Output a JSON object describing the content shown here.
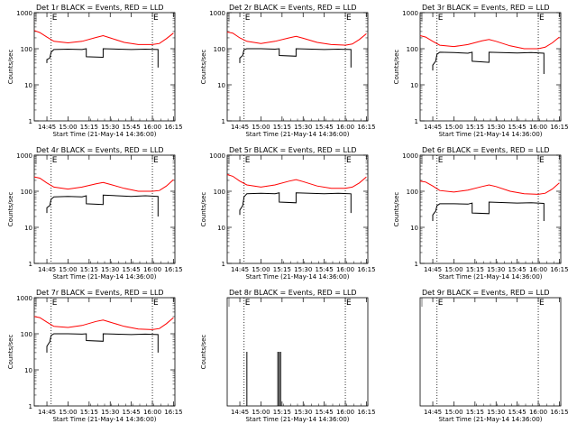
{
  "colors": {
    "events": "#000000",
    "lld": "#ff0000",
    "axes": "#000000",
    "background": "#ffffff"
  },
  "chart_data": [
    {
      "type": "line",
      "title": "Det 1r BLACK = Events, RED = LLD",
      "xlabel": "Start Time (21-May-14 14:36:00)",
      "ylabel": "Counts/sec",
      "x_ticks": [
        "14:45",
        "15:00",
        "15:15",
        "15:30",
        "15:45",
        "16:00",
        "16:15"
      ],
      "y_ticks": [
        "1",
        "10",
        "100",
        "1000"
      ],
      "ylim": [
        1,
        1000
      ],
      "yscale": "log",
      "xlim": [
        "14:36",
        "16:16"
      ],
      "markers": [
        "14:48",
        "16:00"
      ],
      "marker_label": "E",
      "series": [
        {
          "name": "Events",
          "color": "#000000",
          "x": [
            "14:45",
            "14:45",
            "14:47",
            "14:48",
            "14:50",
            "15:00",
            "15:10",
            "15:13",
            "15:13",
            "15:25",
            "15:25",
            "15:45",
            "15:55",
            "16:04",
            "16:04"
          ],
          "y": [
            40,
            50,
            55,
            80,
            95,
            97,
            95,
            100,
            60,
            58,
            100,
            95,
            97,
            95,
            30
          ]
        },
        {
          "name": "LLD",
          "color": "#ff0000",
          "x": [
            "14:36",
            "14:40",
            "14:45",
            "14:50",
            "15:00",
            "15:10",
            "15:20",
            "15:25",
            "15:30",
            "15:40",
            "15:50",
            "16:00",
            "16:05",
            "16:10",
            "16:15"
          ],
          "y": [
            320,
            280,
            210,
            160,
            145,
            160,
            205,
            230,
            200,
            150,
            130,
            130,
            140,
            190,
            270
          ]
        }
      ]
    },
    {
      "type": "line",
      "title": "Det 2r BLACK = Events, RED = LLD",
      "xlabel": "Start Time (21-May-14 14:36:00)",
      "ylabel": "Counts/sec",
      "x_ticks": [
        "14:45",
        "15:00",
        "15:15",
        "15:30",
        "15:45",
        "16:00",
        "16:15"
      ],
      "y_ticks": [
        "1",
        "10",
        "100",
        "1000"
      ],
      "ylim": [
        1,
        1000
      ],
      "yscale": "log",
      "xlim": [
        "14:36",
        "16:16"
      ],
      "markers": [
        "14:48",
        "16:00"
      ],
      "marker_label": "E",
      "series": [
        {
          "name": "Events",
          "color": "#000000",
          "x": [
            "14:45",
            "14:45",
            "14:47",
            "14:48",
            "14:50",
            "15:00",
            "15:10",
            "15:13",
            "15:13",
            "15:25",
            "15:25",
            "15:45",
            "15:55",
            "16:04",
            "16:04"
          ],
          "y": [
            40,
            55,
            65,
            95,
            100,
            100,
            97,
            100,
            65,
            62,
            100,
            95,
            97,
            95,
            30
          ]
        },
        {
          "name": "LLD",
          "color": "#ff0000",
          "x": [
            "14:36",
            "14:40",
            "14:45",
            "14:50",
            "15:00",
            "15:10",
            "15:20",
            "15:25",
            "15:30",
            "15:40",
            "15:50",
            "16:00",
            "16:05",
            "16:10",
            "16:15"
          ],
          "y": [
            290,
            270,
            200,
            160,
            140,
            160,
            200,
            220,
            195,
            150,
            130,
            125,
            135,
            180,
            260
          ]
        }
      ]
    },
    {
      "type": "line",
      "title": "Det 3r BLACK = Events, RED = LLD",
      "xlabel": "Start Time (21-May-14 14:36:00)",
      "ylabel": "Counts/sec",
      "x_ticks": [
        "14:45",
        "15:00",
        "15:15",
        "15:30",
        "15:45",
        "16:00",
        "16:15"
      ],
      "y_ticks": [
        "1",
        "10",
        "100",
        "1000"
      ],
      "ylim": [
        1,
        1000
      ],
      "yscale": "log",
      "xlim": [
        "14:36",
        "16:16"
      ],
      "markers": [
        "14:48",
        "16:00"
      ],
      "marker_label": "E",
      "series": [
        {
          "name": "Events",
          "color": "#000000",
          "x": [
            "14:45",
            "14:45",
            "14:47",
            "14:48",
            "14:50",
            "15:00",
            "15:10",
            "15:13",
            "15:13",
            "15:25",
            "15:25",
            "15:45",
            "15:55",
            "16:04",
            "16:04"
          ],
          "y": [
            25,
            35,
            45,
            70,
            80,
            78,
            75,
            80,
            45,
            42,
            80,
            76,
            78,
            75,
            20
          ]
        },
        {
          "name": "LLD",
          "color": "#ff0000",
          "x": [
            "14:36",
            "14:40",
            "14:45",
            "14:50",
            "15:00",
            "15:10",
            "15:20",
            "15:25",
            "15:30",
            "15:40",
            "15:50",
            "16:00",
            "16:05",
            "16:10",
            "16:15"
          ],
          "y": [
            230,
            210,
            160,
            125,
            115,
            130,
            165,
            180,
            160,
            120,
            100,
            100,
            110,
            145,
            210
          ]
        }
      ]
    },
    {
      "type": "line",
      "title": "Det 4r BLACK = Events, RED = LLD",
      "xlabel": "Start Time (21-May-14 14:36:00)",
      "ylabel": "Counts/sec",
      "x_ticks": [
        "14:45",
        "15:00",
        "15:15",
        "15:30",
        "15:45",
        "16:00",
        "16:15"
      ],
      "y_ticks": [
        "1",
        "10",
        "100",
        "1000"
      ],
      "ylim": [
        1,
        1000
      ],
      "yscale": "log",
      "xlim": [
        "14:36",
        "16:16"
      ],
      "markers": [
        "14:48",
        "16:00"
      ],
      "marker_label": "E",
      "series": [
        {
          "name": "Events",
          "color": "#000000",
          "x": [
            "14:45",
            "14:45",
            "14:47",
            "14:48",
            "14:50",
            "15:00",
            "15:10",
            "15:13",
            "15:13",
            "15:25",
            "15:25",
            "15:45",
            "15:55",
            "16:04",
            "16:04"
          ],
          "y": [
            25,
            35,
            40,
            60,
            70,
            72,
            70,
            75,
            45,
            43,
            78,
            72,
            75,
            72,
            20
          ]
        },
        {
          "name": "LLD",
          "color": "#ff0000",
          "x": [
            "14:36",
            "14:40",
            "14:45",
            "14:50",
            "15:00",
            "15:10",
            "15:20",
            "15:25",
            "15:30",
            "15:40",
            "15:50",
            "16:00",
            "16:05",
            "16:10",
            "16:15"
          ],
          "y": [
            250,
            230,
            170,
            130,
            115,
            130,
            160,
            175,
            155,
            120,
            100,
            100,
            105,
            140,
            210
          ]
        }
      ]
    },
    {
      "type": "line",
      "title": "Det 5r BLACK = Events, RED = LLD",
      "xlabel": "Start Time (21-May-14 14:36:00)",
      "ylabel": "Counts/sec",
      "x_ticks": [
        "14:45",
        "15:00",
        "15:15",
        "15:30",
        "15:45",
        "16:00",
        "16:15"
      ],
      "y_ticks": [
        "1",
        "10",
        "100",
        "1000"
      ],
      "ylim": [
        1,
        1000
      ],
      "yscale": "log",
      "xlim": [
        "14:36",
        "16:16"
      ],
      "markers": [
        "14:48",
        "16:00"
      ],
      "marker_label": "E",
      "series": [
        {
          "name": "Events",
          "color": "#000000",
          "x": [
            "14:45",
            "14:45",
            "14:47",
            "14:48",
            "14:50",
            "15:00",
            "15:10",
            "15:13",
            "15:13",
            "15:25",
            "15:25",
            "15:45",
            "15:55",
            "16:04",
            "16:04"
          ],
          "y": [
            22,
            30,
            40,
            70,
            85,
            88,
            85,
            90,
            50,
            48,
            90,
            85,
            88,
            85,
            25
          ]
        },
        {
          "name": "LLD",
          "color": "#ff0000",
          "x": [
            "14:36",
            "14:40",
            "14:45",
            "14:50",
            "15:00",
            "15:10",
            "15:20",
            "15:25",
            "15:30",
            "15:40",
            "15:50",
            "16:00",
            "16:05",
            "16:10",
            "16:15"
          ],
          "y": [
            290,
            260,
            190,
            150,
            130,
            150,
            190,
            210,
            185,
            140,
            120,
            120,
            130,
            170,
            250
          ]
        }
      ]
    },
    {
      "type": "line",
      "title": "Det 6r BLACK = Events, RED = LLD",
      "xlabel": "Start Time (21-May-14 14:36:00)",
      "ylabel": "Counts/sec",
      "x_ticks": [
        "14:45",
        "15:00",
        "15:15",
        "15:30",
        "15:45",
        "16:00",
        "16:15"
      ],
      "y_ticks": [
        "1",
        "10",
        "100",
        "1000"
      ],
      "ylim": [
        1,
        1000
      ],
      "yscale": "log",
      "xlim": [
        "14:36",
        "16:16"
      ],
      "markers": [
        "14:48",
        "16:00"
      ],
      "marker_label": "E",
      "series": [
        {
          "name": "Events",
          "color": "#000000",
          "x": [
            "14:45",
            "14:45",
            "14:47",
            "14:48",
            "14:50",
            "15:00",
            "15:10",
            "15:13",
            "15:13",
            "15:25",
            "15:25",
            "15:45",
            "15:55",
            "16:04",
            "16:04"
          ],
          "y": [
            15,
            22,
            28,
            40,
            45,
            45,
            44,
            47,
            25,
            24,
            50,
            47,
            48,
            46,
            15
          ]
        },
        {
          "name": "LLD",
          "color": "#ff0000",
          "x": [
            "14:36",
            "14:40",
            "14:45",
            "14:50",
            "15:00",
            "15:10",
            "15:20",
            "15:25",
            "15:30",
            "15:40",
            "15:50",
            "16:00",
            "16:05",
            "16:10",
            "16:15"
          ],
          "y": [
            190,
            180,
            140,
            105,
            95,
            108,
            135,
            150,
            135,
            100,
            85,
            82,
            88,
            115,
            170
          ]
        }
      ]
    },
    {
      "type": "line",
      "title": "Det 7r BLACK = Events, RED = LLD",
      "xlabel": "Start Time (21-May-14 14:36:00)",
      "ylabel": "Counts/sec",
      "x_ticks": [
        "14:45",
        "15:00",
        "15:15",
        "15:30",
        "15:45",
        "16:00",
        "16:15"
      ],
      "y_ticks": [
        "1",
        "10",
        "100",
        "1000"
      ],
      "ylim": [
        1,
        1000
      ],
      "yscale": "log",
      "xlim": [
        "14:36",
        "16:16"
      ],
      "markers": [
        "14:48",
        "16:00"
      ],
      "marker_label": "E",
      "series": [
        {
          "name": "Events",
          "color": "#000000",
          "x": [
            "14:45",
            "14:45",
            "14:47",
            "14:48",
            "14:50",
            "15:00",
            "15:10",
            "15:13",
            "15:13",
            "15:25",
            "15:25",
            "15:45",
            "15:55",
            "16:04",
            "16:04"
          ],
          "y": [
            30,
            45,
            60,
            90,
            100,
            100,
            98,
            100,
            65,
            62,
            100,
            95,
            98,
            95,
            30
          ]
        },
        {
          "name": "LLD",
          "color": "#ff0000",
          "x": [
            "14:36",
            "14:40",
            "14:45",
            "14:50",
            "15:00",
            "15:10",
            "15:20",
            "15:25",
            "15:30",
            "15:40",
            "15:50",
            "16:00",
            "16:05",
            "16:10",
            "16:15"
          ],
          "y": [
            300,
            280,
            210,
            160,
            150,
            170,
            220,
            240,
            210,
            160,
            135,
            130,
            140,
            190,
            280
          ]
        }
      ]
    },
    {
      "type": "line",
      "title": "Det 8r BLACK = Events, RED = LLD",
      "xlabel": "Start Time (21-May-14 14:36:00)",
      "ylabel": "Counts/sec",
      "x_ticks": [
        "14:45",
        "15:00",
        "15:15",
        "15:30",
        "15:45",
        "16:00",
        "16:15"
      ],
      "y_ticks": [],
      "ylim": [
        1,
        3
      ],
      "yscale": "linear",
      "xlim": [
        "14:36",
        "16:16"
      ],
      "markers": [
        "14:48",
        "16:00"
      ],
      "marker_label": "E",
      "spikes": [
        {
          "name": "Events",
          "color": "#000000",
          "x": [
            "14:50",
            "15:12",
            "15:13",
            "15:14"
          ],
          "y": [
            2,
            2,
            2,
            2
          ]
        }
      ]
    },
    {
      "type": "line",
      "title": "Det 9r BLACK = Events, RED = LLD",
      "xlabel": "Start Time (21-May-14 14:36:00)",
      "ylabel": "",
      "x_ticks": [
        "14:45",
        "15:00",
        "15:15",
        "15:30",
        "15:45",
        "16:00",
        "16:15"
      ],
      "y_ticks": [],
      "ylim": [
        0,
        1
      ],
      "yscale": "linear",
      "xlim": [
        "14:36",
        "16:16"
      ],
      "markers": [
        "14:48",
        "16:00"
      ],
      "marker_label": "E",
      "series": []
    }
  ]
}
